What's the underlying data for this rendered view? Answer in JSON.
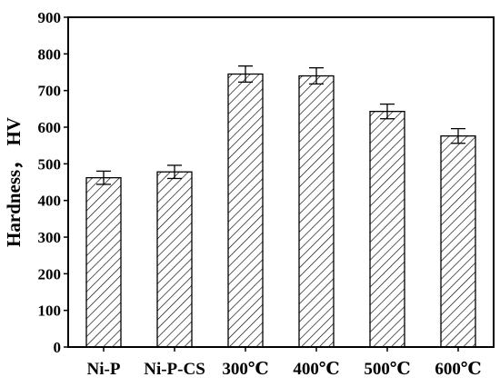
{
  "chart_data": {
    "type": "bar",
    "categories": [
      "Ni-P",
      "Ni-P-CS",
      "300℃",
      "400℃",
      "500℃",
      "600℃"
    ],
    "series": [
      {
        "values": [
          462,
          478,
          745,
          740,
          643,
          576
        ],
        "errors": [
          18,
          18,
          22,
          22,
          20,
          20
        ]
      }
    ],
    "xlabel": "",
    "ylabel": "Hardness， HV",
    "ylim": [
      0,
      900
    ],
    "yticks": [
      0,
      100,
      200,
      300,
      400,
      500,
      600,
      700,
      800,
      900
    ],
    "bar_pattern": "diagonal-hatch",
    "bar_fill": "#ffffff",
    "stroke_color": "#000000",
    "grid": false,
    "legend": "none"
  }
}
